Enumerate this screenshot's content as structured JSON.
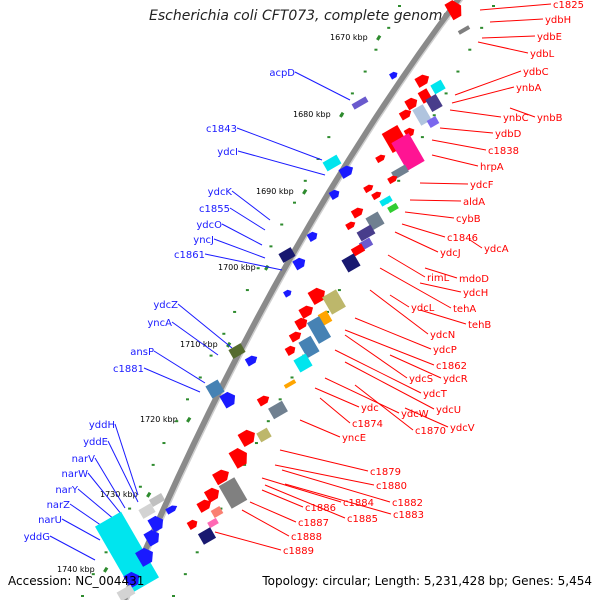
{
  "title": "Escherichia coli CFT073, complete genome",
  "accession": "Accession: NC_004431",
  "summary": "Topology: circular; Length: 5,231,428 bp; Genes: 5,454",
  "colors": {
    "backbone": "#8a8a8a",
    "left_label": "#1a1aff",
    "right_label": "#ff0000",
    "tick": "#2e8b2e"
  },
  "kbp_ticks": [
    "1670 kbp",
    "1680 kbp",
    "1690 kbp",
    "1700 kbp",
    "1710 kbp",
    "1720 kbp",
    "1730 kbp",
    "1740 kbp"
  ],
  "left_labels": [
    "acpD",
    "c1843",
    "ydcI",
    "ydcK",
    "c1855",
    "ydcO",
    "yncJ",
    "c1861",
    "ydcZ",
    "yncA",
    "ansP",
    "c1881",
    "yddH",
    "yddE",
    "narV",
    "narW",
    "narY",
    "narZ",
    "narU",
    "yddG"
  ],
  "right_labels": [
    "c1825",
    "ydbH",
    "ydbE",
    "ydbL",
    "ydbC",
    "ynbA",
    "ynbC",
    "ynbB",
    "ydbD",
    "c1838",
    "hrpA",
    "ydcF",
    "aldA",
    "cybB",
    "c1846",
    "ydcA",
    "ydcJ",
    "mdoD",
    "rimL",
    "ydcH",
    "tehA",
    "ydcL",
    "tehB",
    "ydcN",
    "ydcP",
    "c1862",
    "ydcS",
    "ydcR",
    "ydcT",
    "ydc",
    "ydcW",
    "ydcU",
    "c1874",
    "c1870",
    "ydcV",
    "yncE",
    "c1879",
    "c1880",
    "c1884",
    "c1882",
    "c1883",
    "c1886",
    "c1885",
    "c1887",
    "c1888",
    "c1889"
  ]
}
